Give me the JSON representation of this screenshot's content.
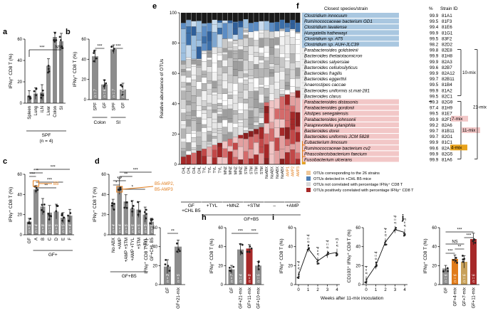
{
  "panel_labels": [
    "a",
    "b",
    "c",
    "d",
    "e",
    "f",
    "g",
    "h",
    "i",
    "j"
  ],
  "y_ifng": "IFNγ⁺ CD8 T (%)",
  "y_cd103": "CD103⁺ IFNγ⁺ CD8 T (%)",
  "ticks_0_60": [
    "0",
    "20",
    "40",
    "60"
  ],
  "ticks_0_100": [
    "0",
    "20",
    "40",
    "60",
    "80",
    "100"
  ],
  "ticks_wk": [
    "0",
    "1",
    "2",
    "3",
    "4"
  ],
  "sig3": "***",
  "sig2": "**",
  "sig1": "*",
  "ns": "NS",
  "panel_a": {
    "categories": [
      "Spleen",
      "Lung",
      "iLN",
      "Liver",
      "Colon",
      "SI"
    ],
    "values": [
      7,
      9,
      10,
      35,
      62,
      58
    ],
    "footer_top": "SPF",
    "footer_bottom": "(n = 4)"
  },
  "panel_b": {
    "categories": [
      "SPF",
      "GF",
      "SPF",
      "GF"
    ],
    "values": [
      43,
      15,
      50,
      10
    ],
    "n_labels": [
      "n = 7",
      "n = 6",
      "n = 7",
      "n = 6"
    ],
    "group_labels": [
      "Colon",
      "SI"
    ]
  },
  "panel_c": {
    "categories": [
      "GF",
      "A",
      "B",
      "C",
      "D",
      "E",
      "F"
    ],
    "values": [
      13,
      45,
      28,
      22,
      23,
      17,
      19
    ],
    "callout": "B5",
    "group_label": "GF+",
    "n_labels": [
      "n = 9",
      "n = 4",
      "n = 8",
      "n = 5",
      "n = 5",
      "n = 5",
      "n = 4"
    ]
  },
  "panel_d": {
    "categories": [
      "No ABX",
      "+AMP",
      "+AMP\n+STM",
      "+AMP\n+TYL",
      "+STM",
      "+TYL",
      "GF+CHL B5"
    ],
    "values": [
      30,
      48,
      33,
      26,
      25,
      20,
      13
    ],
    "callout_1": "B5-AMP2,",
    "callout_2": "B5-AMP3",
    "group_label": "GF+B5",
    "n_labels": [
      "n = 4",
      "n = 4",
      "n = 5",
      "n = 6",
      "n = 5",
      "n = 5",
      "n = 5"
    ]
  },
  "panel_e": {
    "y_label": "Relative abundance of OTUs",
    "x_labels": [
      "CHL",
      "CHL",
      "CHL",
      "CHL",
      "TYL",
      "TYL",
      "TYL",
      "TYL",
      "MNZ",
      "MNZ",
      "MNZ",
      "MNZ",
      "STM",
      "STM",
      "STM",
      "STM",
      "NoABX",
      "NoABX",
      "NoABX",
      "NoABX",
      "AMP1",
      "AMP2",
      "AMP3"
    ],
    "group_labels": [
      "GF\n+CHL B5",
      "+TYL",
      "+MNZ",
      "+STM",
      "–",
      "+AMP"
    ],
    "footer": "GF+B5"
  },
  "panel_f": {
    "headers": [
      "Closest species/strain",
      "%",
      "Strain ID"
    ],
    "rows": [
      {
        "species": "Clostridium innocuum",
        "pct": "99.9",
        "id": "81A1"
      },
      {
        "species": "Ruminococcaceae bacterium GD1",
        "pct": "99.5",
        "id": "81F3"
      },
      {
        "species": "Clostridium lavalense",
        "pct": "99.4",
        "id": "81E6"
      },
      {
        "species": "Hungatella hathewayi",
        "pct": "99.9",
        "id": "81G1"
      },
      {
        "species": "Clostridium sp. AT5",
        "pct": "99.5",
        "id": "83F2"
      },
      {
        "species": "Clostridium sp. AUH-JLC39",
        "pct": "98.2",
        "id": "82D2"
      },
      {
        "species": "Parabacteroides goldsteinii",
        "pct": "99.8",
        "id": "82E8"
      },
      {
        "species": "Bacteroides thetaiotaomicron",
        "pct": "99.9",
        "id": "81H8"
      },
      {
        "species": "Bacteroides salyersiae",
        "pct": "99.9",
        "id": "82A3"
      },
      {
        "species": "Bacteroides cellulosilyticus",
        "pct": "99.6",
        "id": "82B7"
      },
      {
        "species": "Bacteroides fragilis",
        "pct": "99.9",
        "id": "82A12"
      },
      {
        "species": "Bacteroides eggerthii",
        "pct": "99.7",
        "id": "82B11"
      },
      {
        "species": "Anaerostipes caccae",
        "pct": "99.5",
        "id": "81B4"
      },
      {
        "species": "Bacteroides uniformis st.mat-281",
        "pct": "99.9",
        "id": "81A2"
      },
      {
        "species": "Bacteroides clarus",
        "pct": "99.5",
        "id": "82C1"
      },
      {
        "species": "Parabacteroides distasonis",
        "pct": "99.3",
        "id": "82G9"
      },
      {
        "species": "Parabacteroides gordonii",
        "pct": "97.4",
        "id": "81H9"
      },
      {
        "species": "Alistipes senegalensis",
        "pct": "99.5",
        "id": "81E7"
      },
      {
        "species": "Parabacteroides johnsonii",
        "pct": "99.9",
        "id": "82F11"
      },
      {
        "species": "Paraprevotella xylaniphila",
        "pct": "99.2",
        "id": "82A6"
      },
      {
        "species": "Bacteroides dorei",
        "pct": "99.7",
        "id": "81B11"
      },
      {
        "species": "Bacteroides uniformis JCM 5828",
        "pct": "99.7",
        "id": "82G1"
      },
      {
        "species": "Eubacterium limosum",
        "pct": "99.9",
        "id": "81C1"
      },
      {
        "species": "Ruminococcaceae bacterium cv2",
        "pct": "99.6",
        "id": "82A11"
      },
      {
        "species": "Phascolarctobacterium faecium",
        "pct": "99.9",
        "id": "82G5"
      },
      {
        "species": "Fusobacterium ulcerans",
        "pct": "99.9",
        "id": "81A6"
      }
    ],
    "mix_10": "10-mix",
    "mix_21": "21-mix",
    "mix_11": "11-mix",
    "mix_7": "7-mix",
    "mix_4": "4-mix",
    "legend": [
      "OTUs corresponding to the 26 strains",
      "OTUs detected in +CHL B5 mice",
      "OTUs not correlated with percentage IFNγ⁺ CD8 T",
      "OTUs positively correlated with percentage IFNγ⁺ CD8 T"
    ]
  },
  "panel_g": {
    "categories": [
      "GF",
      "GF+21-mix"
    ],
    "values": [
      19,
      40
    ],
    "n_labels": [
      "n = 3",
      "n = 5"
    ]
  },
  "panel_h": {
    "categories": [
      "GF",
      "GF+21-mix",
      "GF+11-mix",
      "GF+10-mix"
    ],
    "values": [
      16,
      37,
      38,
      20
    ],
    "n_labels": [
      "n = 7",
      "n = 4",
      "n = 8",
      "n = 5"
    ]
  },
  "panel_i": {
    "x_label": "Weeks after 11-mix inoculation",
    "x": [
      0,
      1,
      2,
      3,
      4
    ],
    "ifng": [
      10,
      38,
      25,
      32,
      34
    ],
    "cd103": [
      5,
      20,
      45,
      58,
      55
    ],
    "n_labels": [
      "n = 4",
      "n = 4",
      "n = 4",
      "n = 4",
      "n = 3"
    ]
  },
  "panel_j": {
    "categories": [
      "GF",
      "GF+4-mix",
      "GF+7-mix",
      "GF+11-mix"
    ],
    "values": [
      17,
      27,
      24,
      48
    ],
    "n_labels": [
      "n = 6",
      "n = 6",
      "n = 6",
      "n = 6"
    ]
  },
  "colors": {
    "bar": "#8c8c8c",
    "orange": "#e07b1a",
    "red": "#a62828",
    "blue": "#4f7fb5",
    "lightblue": "#a9c7e0",
    "pink": "#f2c7c7",
    "gold": "#e8a31c"
  }
}
